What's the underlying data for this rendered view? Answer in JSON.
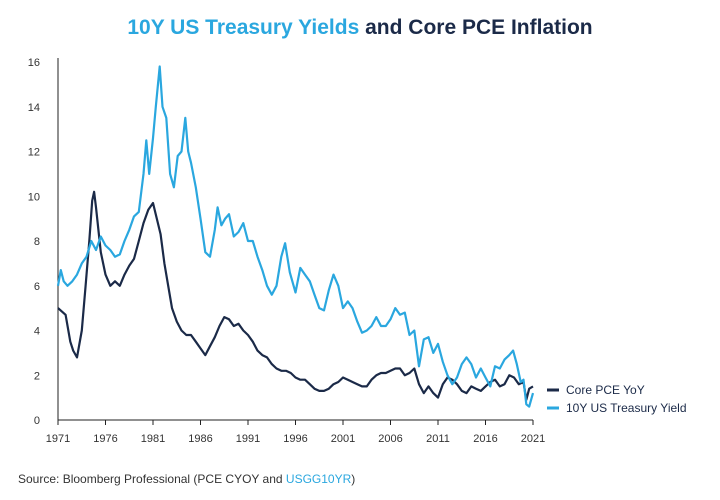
{
  "title": {
    "highlight": "10Y US Treasury Yields",
    "rest": " and Core PCE Inflation"
  },
  "source": {
    "prefix": "Source: Bloomberg Professional (PCE CYOY and ",
    "link": "USGG10YR",
    "suffix": ")"
  },
  "colors": {
    "core_pce": "#1b2a48",
    "treasury": "#2aa7df",
    "axis": "#222222"
  },
  "chart_data": {
    "type": "line",
    "title": "10Y US Treasury Yields and Core PCE Inflation",
    "xlabel": "",
    "ylabel": "",
    "xlim": [
      1971,
      2021
    ],
    "ylim": [
      0,
      16
    ],
    "x_ticks": [
      1971,
      1976,
      1981,
      1986,
      1991,
      1996,
      2001,
      2006,
      2011,
      2016,
      2021
    ],
    "y_ticks": [
      0,
      2,
      4,
      6,
      8,
      10,
      12,
      14,
      16
    ],
    "grid": false,
    "legend_position": "right",
    "series": [
      {
        "name": "Core PCE YoY",
        "color": "#1b2a48",
        "points": [
          [
            1971.0,
            5.0
          ],
          [
            1971.8,
            4.7
          ],
          [
            1972.3,
            3.5
          ],
          [
            1972.6,
            3.1
          ],
          [
            1973.0,
            2.8
          ],
          [
            1973.5,
            4.0
          ],
          [
            1973.9,
            6.0
          ],
          [
            1974.3,
            8.0
          ],
          [
            1974.6,
            9.8
          ],
          [
            1974.8,
            10.2
          ],
          [
            1975.0,
            9.5
          ],
          [
            1975.5,
            7.5
          ],
          [
            1976.0,
            6.5
          ],
          [
            1976.5,
            6.0
          ],
          [
            1977.0,
            6.2
          ],
          [
            1977.5,
            6.0
          ],
          [
            1978.0,
            6.5
          ],
          [
            1978.5,
            6.9
          ],
          [
            1979.0,
            7.2
          ],
          [
            1979.5,
            8.0
          ],
          [
            1980.0,
            8.8
          ],
          [
            1980.5,
            9.4
          ],
          [
            1981.0,
            9.7
          ],
          [
            1981.4,
            9.0
          ],
          [
            1981.8,
            8.3
          ],
          [
            1982.2,
            7.0
          ],
          [
            1982.6,
            6.0
          ],
          [
            1983.0,
            5.0
          ],
          [
            1983.5,
            4.4
          ],
          [
            1984.0,
            4.0
          ],
          [
            1984.5,
            3.8
          ],
          [
            1985.0,
            3.8
          ],
          [
            1985.5,
            3.5
          ],
          [
            1986.0,
            3.2
          ],
          [
            1986.5,
            2.9
          ],
          [
            1987.0,
            3.3
          ],
          [
            1987.5,
            3.7
          ],
          [
            1988.0,
            4.2
          ],
          [
            1988.5,
            4.6
          ],
          [
            1989.0,
            4.5
          ],
          [
            1989.5,
            4.2
          ],
          [
            1990.0,
            4.3
          ],
          [
            1990.5,
            4.0
          ],
          [
            1991.0,
            3.8
          ],
          [
            1991.5,
            3.5
          ],
          [
            1992.0,
            3.1
          ],
          [
            1992.5,
            2.9
          ],
          [
            1993.0,
            2.8
          ],
          [
            1993.5,
            2.5
          ],
          [
            1994.0,
            2.3
          ],
          [
            1994.5,
            2.2
          ],
          [
            1995.0,
            2.2
          ],
          [
            1995.5,
            2.1
          ],
          [
            1996.0,
            1.9
          ],
          [
            1996.5,
            1.8
          ],
          [
            1997.0,
            1.8
          ],
          [
            1997.5,
            1.6
          ],
          [
            1998.0,
            1.4
          ],
          [
            1998.5,
            1.3
          ],
          [
            1999.0,
            1.3
          ],
          [
            1999.5,
            1.4
          ],
          [
            2000.0,
            1.6
          ],
          [
            2000.5,
            1.7
          ],
          [
            2001.0,
            1.9
          ],
          [
            2001.5,
            1.8
          ],
          [
            2002.0,
            1.7
          ],
          [
            2002.5,
            1.6
          ],
          [
            2003.0,
            1.5
          ],
          [
            2003.5,
            1.5
          ],
          [
            2004.0,
            1.8
          ],
          [
            2004.5,
            2.0
          ],
          [
            2005.0,
            2.1
          ],
          [
            2005.5,
            2.1
          ],
          [
            2006.0,
            2.2
          ],
          [
            2006.5,
            2.3
          ],
          [
            2007.0,
            2.3
          ],
          [
            2007.5,
            2.0
          ],
          [
            2008.0,
            2.1
          ],
          [
            2008.5,
            2.3
          ],
          [
            2009.0,
            1.6
          ],
          [
            2009.5,
            1.2
          ],
          [
            2010.0,
            1.5
          ],
          [
            2010.5,
            1.2
          ],
          [
            2011.0,
            1.0
          ],
          [
            2011.5,
            1.6
          ],
          [
            2012.0,
            1.9
          ],
          [
            2012.5,
            1.8
          ],
          [
            2013.0,
            1.6
          ],
          [
            2013.5,
            1.3
          ],
          [
            2014.0,
            1.2
          ],
          [
            2014.5,
            1.5
          ],
          [
            2015.0,
            1.4
          ],
          [
            2015.5,
            1.3
          ],
          [
            2016.0,
            1.5
          ],
          [
            2016.5,
            1.7
          ],
          [
            2017.0,
            1.8
          ],
          [
            2017.5,
            1.5
          ],
          [
            2018.0,
            1.6
          ],
          [
            2018.5,
            2.0
          ],
          [
            2019.0,
            1.9
          ],
          [
            2019.5,
            1.6
          ],
          [
            2020.0,
            1.7
          ],
          [
            2020.3,
            0.9
          ],
          [
            2020.6,
            1.4
          ],
          [
            2021.0,
            1.5
          ]
        ]
      },
      {
        "name": "10Y US Treasury Yield",
        "color": "#2aa7df",
        "points": [
          [
            1971.0,
            6.0
          ],
          [
            1971.3,
            6.7
          ],
          [
            1971.6,
            6.2
          ],
          [
            1972.0,
            6.0
          ],
          [
            1972.5,
            6.2
          ],
          [
            1973.0,
            6.5
          ],
          [
            1973.5,
            7.0
          ],
          [
            1974.0,
            7.3
          ],
          [
            1974.5,
            8.0
          ],
          [
            1975.0,
            7.6
          ],
          [
            1975.5,
            8.2
          ],
          [
            1976.0,
            7.8
          ],
          [
            1976.5,
            7.6
          ],
          [
            1977.0,
            7.3
          ],
          [
            1977.5,
            7.4
          ],
          [
            1978.0,
            8.0
          ],
          [
            1978.5,
            8.5
          ],
          [
            1979.0,
            9.1
          ],
          [
            1979.5,
            9.3
          ],
          [
            1980.0,
            11.0
          ],
          [
            1980.3,
            12.5
          ],
          [
            1980.6,
            11.0
          ],
          [
            1981.0,
            12.6
          ],
          [
            1981.3,
            14.0
          ],
          [
            1981.7,
            15.8
          ],
          [
            1982.0,
            14.0
          ],
          [
            1982.4,
            13.5
          ],
          [
            1982.8,
            11.0
          ],
          [
            1983.2,
            10.4
          ],
          [
            1983.6,
            11.8
          ],
          [
            1984.0,
            12.0
          ],
          [
            1984.4,
            13.5
          ],
          [
            1984.7,
            12.0
          ],
          [
            1985.0,
            11.5
          ],
          [
            1985.5,
            10.4
          ],
          [
            1986.0,
            9.0
          ],
          [
            1986.5,
            7.5
          ],
          [
            1987.0,
            7.3
          ],
          [
            1987.5,
            8.5
          ],
          [
            1987.8,
            9.5
          ],
          [
            1988.2,
            8.7
          ],
          [
            1988.6,
            9.0
          ],
          [
            1989.0,
            9.2
          ],
          [
            1989.5,
            8.2
          ],
          [
            1990.0,
            8.4
          ],
          [
            1990.5,
            8.8
          ],
          [
            1991.0,
            8.0
          ],
          [
            1991.5,
            8.0
          ],
          [
            1992.0,
            7.3
          ],
          [
            1992.5,
            6.7
          ],
          [
            1993.0,
            6.0
          ],
          [
            1993.5,
            5.6
          ],
          [
            1994.0,
            6.0
          ],
          [
            1994.5,
            7.3
          ],
          [
            1994.9,
            7.9
          ],
          [
            1995.4,
            6.6
          ],
          [
            1996.0,
            5.7
          ],
          [
            1996.5,
            6.8
          ],
          [
            1997.0,
            6.5
          ],
          [
            1997.5,
            6.2
          ],
          [
            1998.0,
            5.6
          ],
          [
            1998.5,
            5.0
          ],
          [
            1999.0,
            4.9
          ],
          [
            1999.5,
            5.8
          ],
          [
            2000.0,
            6.5
          ],
          [
            2000.5,
            6.0
          ],
          [
            2001.0,
            5.0
          ],
          [
            2001.5,
            5.3
          ],
          [
            2002.0,
            5.0
          ],
          [
            2002.5,
            4.4
          ],
          [
            2003.0,
            3.9
          ],
          [
            2003.5,
            4.0
          ],
          [
            2004.0,
            4.2
          ],
          [
            2004.5,
            4.6
          ],
          [
            2005.0,
            4.2
          ],
          [
            2005.5,
            4.2
          ],
          [
            2006.0,
            4.5
          ],
          [
            2006.5,
            5.0
          ],
          [
            2007.0,
            4.7
          ],
          [
            2007.5,
            4.8
          ],
          [
            2008.0,
            3.8
          ],
          [
            2008.5,
            4.0
          ],
          [
            2009.0,
            2.4
          ],
          [
            2009.5,
            3.6
          ],
          [
            2010.0,
            3.7
          ],
          [
            2010.5,
            3.0
          ],
          [
            2011.0,
            3.4
          ],
          [
            2011.5,
            2.6
          ],
          [
            2012.0,
            2.0
          ],
          [
            2012.5,
            1.6
          ],
          [
            2013.0,
            1.9
          ],
          [
            2013.5,
            2.5
          ],
          [
            2014.0,
            2.8
          ],
          [
            2014.5,
            2.5
          ],
          [
            2015.0,
            1.9
          ],
          [
            2015.5,
            2.3
          ],
          [
            2016.0,
            1.9
          ],
          [
            2016.5,
            1.5
          ],
          [
            2017.0,
            2.4
          ],
          [
            2017.5,
            2.3
          ],
          [
            2018.0,
            2.7
          ],
          [
            2018.5,
            2.9
          ],
          [
            2018.9,
            3.1
          ],
          [
            2019.3,
            2.5
          ],
          [
            2019.7,
            1.7
          ],
          [
            2020.0,
            1.8
          ],
          [
            2020.3,
            0.7
          ],
          [
            2020.6,
            0.6
          ],
          [
            2021.0,
            1.2
          ]
        ]
      }
    ]
  }
}
